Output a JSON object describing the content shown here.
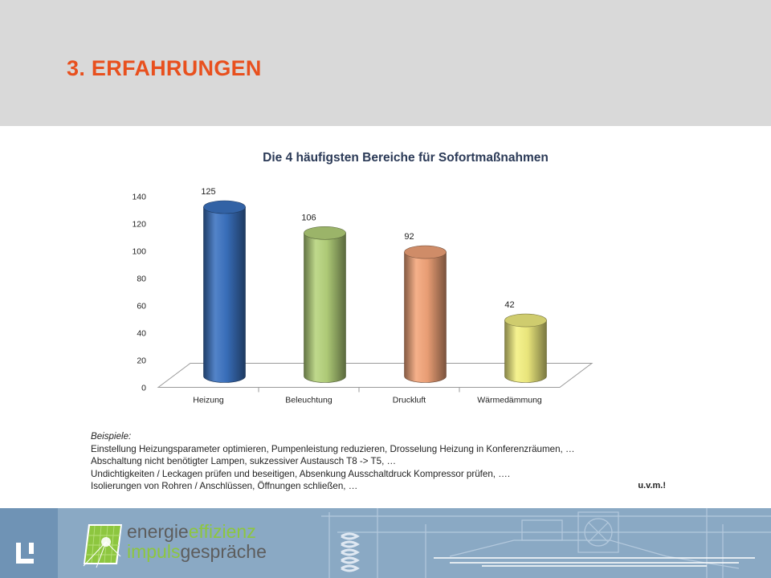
{
  "slide": {
    "title": "3. ERFAHRUNGEN"
  },
  "chart_data": {
    "type": "bar",
    "style": "3d-cylinder",
    "title": "Die 4 häufigsten Bereiche für Sofortmaßnahmen",
    "categories": [
      "Heizung",
      "Beleuchtung",
      "Druckluft",
      "Wärmedämmung"
    ],
    "values": [
      125,
      106,
      92,
      42
    ],
    "data_labels": [
      "125",
      "106",
      "92",
      "42"
    ],
    "colors": [
      "#3b73c2",
      "#b6d47c",
      "#f4a57a",
      "#f4f081"
    ],
    "ylim": [
      0,
      140
    ],
    "yticks": [
      0,
      20,
      40,
      60,
      80,
      100,
      120,
      140
    ],
    "ytick_labels": [
      "0",
      "20",
      "40",
      "60",
      "80",
      "100",
      "120",
      "140"
    ],
    "xlabel": "",
    "ylabel": "",
    "grid": false,
    "legend": "none"
  },
  "examples": {
    "heading": "Beispiele:",
    "lines": [
      "Einstellung Heizungsparameter optimieren, Pumpenleistung reduzieren, Drosselung Heizung in Konferenzräumen, …",
      "Abschaltung nicht benötigter Lampen, sukzessiver Austausch T8 -> T5, …",
      "Undichtigkeiten / Leckagen prüfen und beseitigen, Absenkung Ausschaltdruck Kompressor prüfen, ….",
      "Isolierungen von Rohren / Anschlüssen, Öffnungen schließen, …"
    ],
    "closing": "u.v.m.!"
  },
  "footer": {
    "word1_a": "energie",
    "word1_b": "effizienz",
    "word2_a": "impuls",
    "word2_b": "gespräche",
    "logo_icon": "corporate-logo-icon",
    "background_icon": "building-technology-icon",
    "colors": {
      "green": "#8dc63f",
      "grey": "#5d5d5d",
      "blue": "#8aa9c4"
    }
  }
}
